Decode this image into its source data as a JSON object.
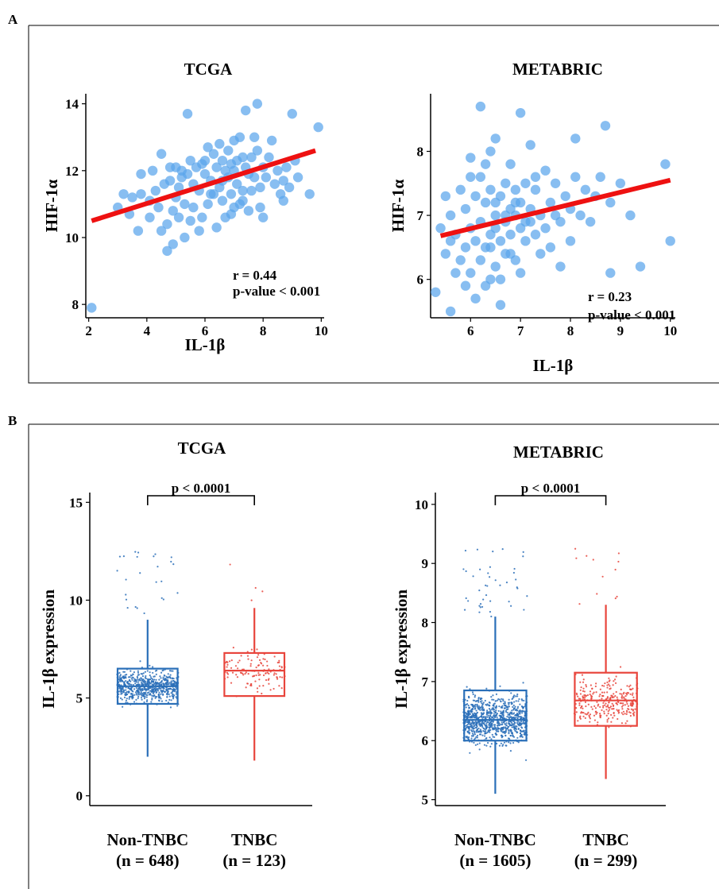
{
  "panels": {
    "A": {
      "label": "A"
    },
    "B": {
      "label": "B"
    }
  },
  "colors": {
    "scatter_point": "#5aa5ec",
    "fit_line": "#ee1111",
    "non_tnbc": "#2a6fb8",
    "tnbc": "#e8453c",
    "axis": "#000000"
  },
  "chart_data": [
    {
      "panel": "A",
      "type": "scatter",
      "title": "TCGA",
      "xlabel": "IL-1β",
      "ylabel": "HIF-1α",
      "xlim": [
        1.9,
        10.1
      ],
      "ylim": [
        7.6,
        14.3
      ],
      "xticks": [
        2,
        4,
        6,
        8,
        10
      ],
      "yticks": [
        8,
        10,
        12,
        14
      ],
      "annotation": [
        "r = 0.44",
        "p-value < 0.001"
      ],
      "fit": {
        "x": [
          2.1,
          9.8
        ],
        "y": [
          10.5,
          12.6
        ]
      },
      "points": [
        [
          2.1,
          7.9
        ],
        [
          3.0,
          10.9
        ],
        [
          3.2,
          11.3
        ],
        [
          3.4,
          10.7
        ],
        [
          3.5,
          11.2
        ],
        [
          3.7,
          10.2
        ],
        [
          3.8,
          11.3
        ],
        [
          3.8,
          11.9
        ],
        [
          4.1,
          10.6
        ],
        [
          4.1,
          11.1
        ],
        [
          4.3,
          11.4
        ],
        [
          4.4,
          10.9
        ],
        [
          4.5,
          10.2
        ],
        [
          4.5,
          12.5
        ],
        [
          4.6,
          11.6
        ],
        [
          4.7,
          10.4
        ],
        [
          4.7,
          9.6
        ],
        [
          4.8,
          12.1
        ],
        [
          4.8,
          11.7
        ],
        [
          4.9,
          10.8
        ],
        [
          4.9,
          9.8
        ],
        [
          5.0,
          11.2
        ],
        [
          5.0,
          12.1
        ],
        [
          5.1,
          11.5
        ],
        [
          5.1,
          10.6
        ],
        [
          5.2,
          12.0
        ],
        [
          5.2,
          11.8
        ],
        [
          5.3,
          10.0
        ],
        [
          5.3,
          11.0
        ],
        [
          5.4,
          13.7
        ],
        [
          5.4,
          11.9
        ],
        [
          5.5,
          10.5
        ],
        [
          5.5,
          12.3
        ],
        [
          5.6,
          11.6
        ],
        [
          5.6,
          10.9
        ],
        [
          5.7,
          12.1
        ],
        [
          5.8,
          11.4
        ],
        [
          5.9,
          12.2
        ],
        [
          5.9,
          10.6
        ],
        [
          6.0,
          11.9
        ],
        [
          6.0,
          12.3
        ],
        [
          6.1,
          11.0
        ],
        [
          6.1,
          12.7
        ],
        [
          6.2,
          11.7
        ],
        [
          6.3,
          12.5
        ],
        [
          6.3,
          11.3
        ],
        [
          6.4,
          10.3
        ],
        [
          6.4,
          12.1
        ],
        [
          6.5,
          12.8
        ],
        [
          6.5,
          11.5
        ],
        [
          6.6,
          12.3
        ],
        [
          6.6,
          11.1
        ],
        [
          6.7,
          12.0
        ],
        [
          6.7,
          10.6
        ],
        [
          6.8,
          12.6
        ],
        [
          6.8,
          11.8
        ],
        [
          6.9,
          12.2
        ],
        [
          6.9,
          11.3
        ],
        [
          7.0,
          12.9
        ],
        [
          7.0,
          10.9
        ],
        [
          7.0,
          12.0
        ],
        [
          7.1,
          11.6
        ],
        [
          7.1,
          12.3
        ],
        [
          7.2,
          11.0
        ],
        [
          7.2,
          13.0
        ],
        [
          7.3,
          12.4
        ],
        [
          7.3,
          11.4
        ],
        [
          7.4,
          13.8
        ],
        [
          7.4,
          12.1
        ],
        [
          7.5,
          10.8
        ],
        [
          7.5,
          11.9
        ],
        [
          7.6,
          12.4
        ],
        [
          7.6,
          11.4
        ],
        [
          7.7,
          13.0
        ],
        [
          7.7,
          11.8
        ],
        [
          7.8,
          14.0
        ],
        [
          7.8,
          12.6
        ],
        [
          7.9,
          11.5
        ],
        [
          7.9,
          10.9
        ],
        [
          8.0,
          12.1
        ],
        [
          8.0,
          10.6
        ],
        [
          8.1,
          11.8
        ],
        [
          8.2,
          12.4
        ],
        [
          8.3,
          12.9
        ],
        [
          8.4,
          11.6
        ],
        [
          8.5,
          12.0
        ],
        [
          8.6,
          11.3
        ],
        [
          8.7,
          11.7
        ],
        [
          8.8,
          12.1
        ],
        [
          8.9,
          11.5
        ],
        [
          9.0,
          13.7
        ],
        [
          9.1,
          12.3
        ],
        [
          9.2,
          11.8
        ],
        [
          9.6,
          11.3
        ],
        [
          9.9,
          13.3
        ],
        [
          6.2,
          11.3
        ],
        [
          5.8,
          10.2
        ],
        [
          6.6,
          11.7
        ],
        [
          7.3,
          11.1
        ],
        [
          4.2,
          12.0
        ],
        [
          8.7,
          11.1
        ],
        [
          6.9,
          10.7
        ]
      ]
    },
    {
      "panel": "A",
      "type": "scatter",
      "title": "METABRIC",
      "xlabel": "IL-1β",
      "ylabel": "HIF-1α",
      "xlim": [
        5.2,
        10.1
      ],
      "ylim": [
        5.4,
        8.9
      ],
      "xticks": [
        6,
        7,
        8,
        9,
        10
      ],
      "yticks": [
        6,
        7,
        8
      ],
      "annotation": [
        "r = 0.23",
        "p-value < 0.001"
      ],
      "fit": {
        "x": [
          5.4,
          10.0
        ],
        "y": [
          6.68,
          7.55
        ]
      },
      "points": [
        [
          5.3,
          5.8
        ],
        [
          5.4,
          6.8
        ],
        [
          5.5,
          7.3
        ],
        [
          5.5,
          6.4
        ],
        [
          5.6,
          5.5
        ],
        [
          5.6,
          7.0
        ],
        [
          5.7,
          6.1
        ],
        [
          5.7,
          6.7
        ],
        [
          5.8,
          7.4
        ],
        [
          5.8,
          6.3
        ],
        [
          5.9,
          5.9
        ],
        [
          5.9,
          7.1
        ],
        [
          5.9,
          6.5
        ],
        [
          6.0,
          6.8
        ],
        [
          6.0,
          7.6
        ],
        [
          6.0,
          6.1
        ],
        [
          6.1,
          6.6
        ],
        [
          6.1,
          7.3
        ],
        [
          6.1,
          5.7
        ],
        [
          6.2,
          6.9
        ],
        [
          6.2,
          8.7
        ],
        [
          6.2,
          6.3
        ],
        [
          6.3,
          7.2
        ],
        [
          6.3,
          6.5
        ],
        [
          6.3,
          7.8
        ],
        [
          6.4,
          6.7
        ],
        [
          6.4,
          6.0
        ],
        [
          6.4,
          7.4
        ],
        [
          6.5,
          6.8
        ],
        [
          6.5,
          7.0
        ],
        [
          6.5,
          8.2
        ],
        [
          6.5,
          6.2
        ],
        [
          6.6,
          6.6
        ],
        [
          6.6,
          7.3
        ],
        [
          6.6,
          5.6
        ],
        [
          6.7,
          6.9
        ],
        [
          6.7,
          7.5
        ],
        [
          6.7,
          6.4
        ],
        [
          6.8,
          7.1
        ],
        [
          6.8,
          6.7
        ],
        [
          6.8,
          7.8
        ],
        [
          6.9,
          7.0
        ],
        [
          6.9,
          6.3
        ],
        [
          6.9,
          7.4
        ],
        [
          7.0,
          6.8
        ],
        [
          7.0,
          8.6
        ],
        [
          7.0,
          7.2
        ],
        [
          7.0,
          6.1
        ],
        [
          7.1,
          6.6
        ],
        [
          7.1,
          7.5
        ],
        [
          7.2,
          6.9
        ],
        [
          7.2,
          7.1
        ],
        [
          7.2,
          8.1
        ],
        [
          7.3,
          6.7
        ],
        [
          7.3,
          7.4
        ],
        [
          7.4,
          6.4
        ],
        [
          7.4,
          7.0
        ],
        [
          7.5,
          7.7
        ],
        [
          7.5,
          6.8
        ],
        [
          7.6,
          7.2
        ],
        [
          7.6,
          6.5
        ],
        [
          7.7,
          7.0
        ],
        [
          7.7,
          7.5
        ],
        [
          7.8,
          6.9
        ],
        [
          7.9,
          7.3
        ],
        [
          8.0,
          6.6
        ],
        [
          8.0,
          7.1
        ],
        [
          8.1,
          7.6
        ],
        [
          8.2,
          7.0
        ],
        [
          8.3,
          7.4
        ],
        [
          8.4,
          6.9
        ],
        [
          8.5,
          7.3
        ],
        [
          8.6,
          7.6
        ],
        [
          8.7,
          8.4
        ],
        [
          8.8,
          7.2
        ],
        [
          9.0,
          7.5
        ],
        [
          9.2,
          7.0
        ],
        [
          9.4,
          6.2
        ],
        [
          9.9,
          7.8
        ],
        [
          10.0,
          6.6
        ],
        [
          8.8,
          6.1
        ],
        [
          8.1,
          8.2
        ],
        [
          6.3,
          5.9
        ],
        [
          6.6,
          6.0
        ],
        [
          7.8,
          6.2
        ],
        [
          5.6,
          6.6
        ],
        [
          6.0,
          7.9
        ],
        [
          6.4,
          8.0
        ],
        [
          7.3,
          7.6
        ],
        [
          6.5,
          7.2
        ],
        [
          6.9,
          7.2
        ],
        [
          6.2,
          7.6
        ],
        [
          6.7,
          7.0
        ],
        [
          7.1,
          6.9
        ],
        [
          6.8,
          6.4
        ],
        [
          6.4,
          6.5
        ]
      ]
    },
    {
      "panel": "B",
      "type": "box",
      "title": "TCGA",
      "ylabel": "IL-1β expression",
      "ylim": [
        -0.5,
        15.5
      ],
      "yticks": [
        0,
        5,
        10,
        15
      ],
      "significance": "p < 0.0001",
      "groups": [
        {
          "name": "Non-TNBC",
          "n_label": "(n = 648)",
          "q1": 4.7,
          "median": 5.6,
          "q3": 6.5,
          "whisker_low": 2.0,
          "whisker_high": 9.0
        },
        {
          "name": "TNBC",
          "n_label": "(n = 123)",
          "q1": 5.1,
          "median": 6.4,
          "q3": 7.3,
          "whisker_low": 1.8,
          "whisker_high": 9.6
        }
      ]
    },
    {
      "panel": "B",
      "type": "box",
      "title": "METABRIC",
      "ylabel": "IL-1β expression",
      "ylim": [
        4.9,
        10.2
      ],
      "yticks": [
        5,
        6,
        7,
        8,
        9,
        10
      ],
      "significance": "p < 0.0001",
      "groups": [
        {
          "name": "Non-TNBC",
          "n_label": "(n = 1605)",
          "q1": 6.0,
          "median": 6.35,
          "q3": 6.85,
          "whisker_low": 5.1,
          "whisker_high": 8.1
        },
        {
          "name": "TNBC",
          "n_label": "(n = 299)",
          "q1": 6.25,
          "median": 6.68,
          "q3": 7.15,
          "whisker_low": 5.35,
          "whisker_high": 8.3
        }
      ]
    }
  ]
}
